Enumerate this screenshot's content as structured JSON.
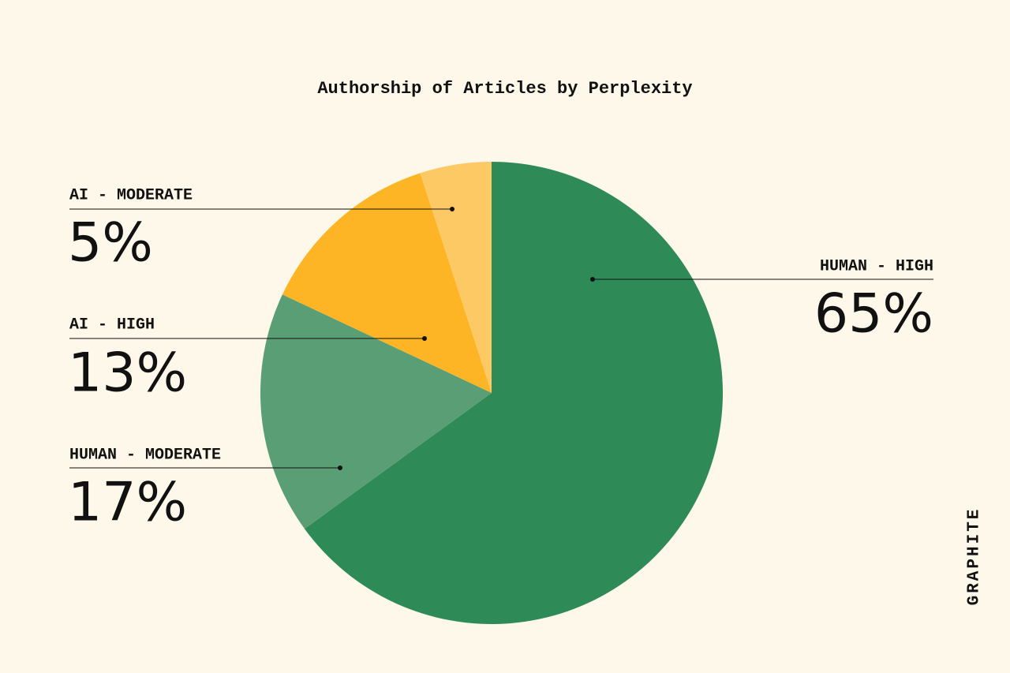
{
  "chart_data": {
    "type": "pie",
    "title": "Authorship of Articles by Perplexity",
    "categories": [
      "HUMAN - HIGH",
      "HUMAN - MODERATE",
      "AI - HIGH",
      "AI - MODERATE"
    ],
    "values": [
      65,
      17,
      13,
      5
    ],
    "value_labels": [
      "65%",
      "17%",
      "13%",
      "5%"
    ],
    "colors": [
      "#2e8b57",
      "#5a9e76",
      "#fdb526",
      "#fdc964"
    ],
    "brand": "GRAPHITE"
  }
}
